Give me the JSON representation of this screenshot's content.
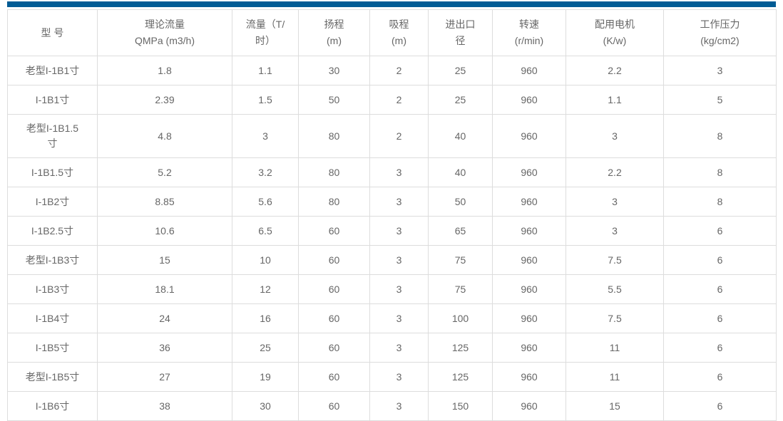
{
  "colors": {
    "accent_bar": "#005b94",
    "border": "#dddddd",
    "text": "#666666",
    "background": "#ffffff"
  },
  "table": {
    "headers": [
      "型 号",
      "理论流量\nQMPa (m3/h)",
      "流量（T/\n时）",
      "扬程\n(m)",
      "吸程\n(m)",
      "进出口\n径",
      "转速\n(r/min)",
      "配用电机\n(K/w)",
      "工作压力\n(kg/cm2)"
    ],
    "rows": [
      [
        "老型I-1B1寸",
        "1.8",
        "1.1",
        "30",
        "2",
        "25",
        "960",
        "2.2",
        "3"
      ],
      [
        "I-1B1寸",
        "2.39",
        "1.5",
        "50",
        "2",
        "25",
        "960",
        "1.1",
        "5"
      ],
      [
        "老型I-1B1.5\n寸",
        "4.8",
        "3",
        "80",
        "2",
        "40",
        "960",
        "3",
        "8"
      ],
      [
        "I-1B1.5寸",
        "5.2",
        "3.2",
        "80",
        "3",
        "40",
        "960",
        "2.2",
        "8"
      ],
      [
        "I-1B2寸",
        "8.85",
        "5.6",
        "80",
        "3",
        "50",
        "960",
        "3",
        "8"
      ],
      [
        "I-1B2.5寸",
        "10.6",
        "6.5",
        "60",
        "3",
        "65",
        "960",
        "3",
        "6"
      ],
      [
        "老型I-1B3寸",
        "15",
        "10",
        "60",
        "3",
        "75",
        "960",
        "7.5",
        "6"
      ],
      [
        "I-1B3寸",
        "18.1",
        "12",
        "60",
        "3",
        "75",
        "960",
        "5.5",
        "6"
      ],
      [
        "I-1B4寸",
        "24",
        "16",
        "60",
        "3",
        "100",
        "960",
        "7.5",
        "6"
      ],
      [
        "I-1B5寸",
        "36",
        "25",
        "60",
        "3",
        "125",
        "960",
        "11",
        "6"
      ],
      [
        "老型I-1B5寸",
        "27",
        "19",
        "60",
        "3",
        "125",
        "960",
        "11",
        "6"
      ],
      [
        "I-1B6寸",
        "38",
        "30",
        "60",
        "3",
        "150",
        "960",
        "15",
        "6"
      ]
    ]
  }
}
